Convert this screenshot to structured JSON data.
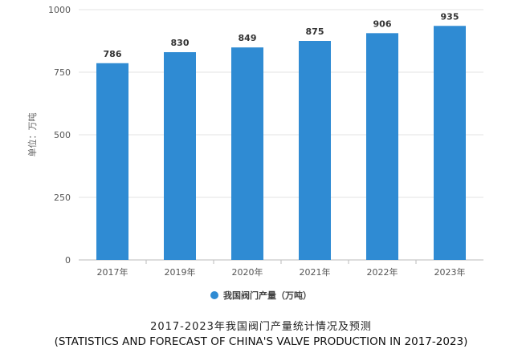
{
  "chart_data": {
    "type": "bar",
    "categories": [
      "2017年",
      "2019年",
      "2020年",
      "2021年",
      "2022年",
      "2023年"
    ],
    "values": [
      786,
      830,
      849,
      875,
      906,
      935
    ],
    "ylabel": "单位：万吨",
    "xlabel": "",
    "ylim": [
      0,
      1000
    ],
    "yticks": [
      0,
      250,
      500,
      750,
      1000
    ],
    "grid": true,
    "legend_position": "bottom",
    "series": [
      {
        "name": "我国阀门产量（万吨）",
        "values": [
          786,
          830,
          849,
          875,
          906,
          935
        ]
      }
    ],
    "bar_color": "#2f8bd3"
  },
  "caption": {
    "chinese": "2017-2023年我国阀门产量统计情况及预测",
    "english": "(STATISTICS AND FORECAST OF CHINA'S VALVE PRODUCTION IN 2017-2023)"
  }
}
